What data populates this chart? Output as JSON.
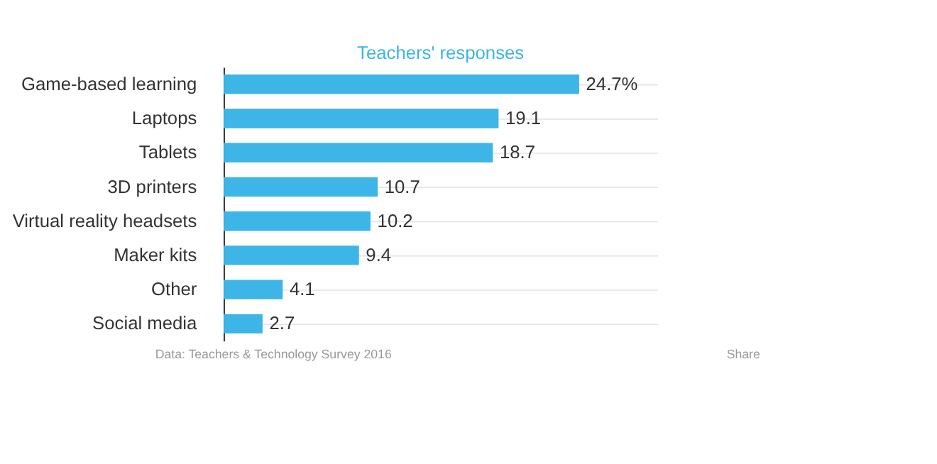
{
  "chart_data": {
    "type": "bar",
    "orientation": "horizontal",
    "title": "Teachers' responses",
    "categories": [
      "Game-based learning",
      "Laptops",
      "Tablets",
      "3D printers",
      "Virtual reality headsets",
      "Maker kits",
      "Other",
      "Social media"
    ],
    "values": [
      24.7,
      19.1,
      18.7,
      10.7,
      10.2,
      9.4,
      4.1,
      2.7
    ],
    "value_labels": [
      "24.7%",
      "19.1",
      "18.7",
      "10.7",
      "10.2",
      "9.4",
      "4.1",
      "2.7"
    ],
    "color": "#3db5e6",
    "grid": "y",
    "annotations": [
      "Data: Teachers & Technology Survey 2016",
      "Share"
    ]
  }
}
